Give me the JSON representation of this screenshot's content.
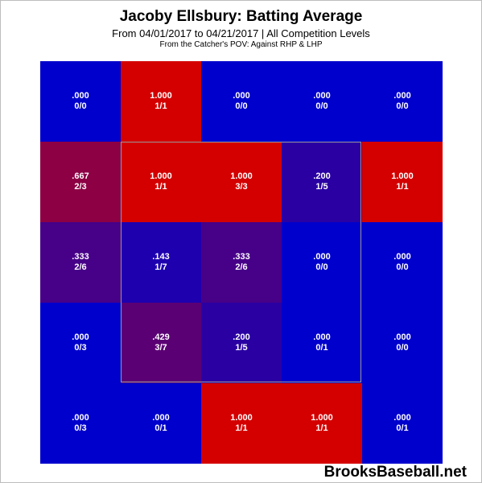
{
  "header": {
    "title": "Jacoby Ellsbury: Batting Average",
    "subtitle": "From 04/01/2017 to 04/21/2017 | All Competition Levels",
    "note": "From the Catcher's POV:  Against RHP & LHP"
  },
  "watermark": "BrooksBaseball.net",
  "colors": {
    "high": "#d40000",
    "low": "#0000cc",
    "cell_text": "#ffffff",
    "zone_border": "#9a9a9a"
  },
  "chart_data": {
    "type": "heatmap",
    "title": "Jacoby Ellsbury: Batting Average",
    "rows": 5,
    "cols": 5,
    "cells": [
      [
        {
          "avg": ".000",
          "ratio": "0/0",
          "value": 0.0
        },
        {
          "avg": "1.000",
          "ratio": "1/1",
          "value": 1.0
        },
        {
          "avg": ".000",
          "ratio": "0/0",
          "value": 0.0
        },
        {
          "avg": ".000",
          "ratio": "0/0",
          "value": 0.0
        },
        {
          "avg": ".000",
          "ratio": "0/0",
          "value": 0.0
        }
      ],
      [
        {
          "avg": ".667",
          "ratio": "2/3",
          "value": 0.667
        },
        {
          "avg": "1.000",
          "ratio": "1/1",
          "value": 1.0
        },
        {
          "avg": "1.000",
          "ratio": "3/3",
          "value": 1.0
        },
        {
          "avg": ".200",
          "ratio": "1/5",
          "value": 0.2
        },
        {
          "avg": "1.000",
          "ratio": "1/1",
          "value": 1.0
        }
      ],
      [
        {
          "avg": ".333",
          "ratio": "2/6",
          "value": 0.333
        },
        {
          "avg": ".143",
          "ratio": "1/7",
          "value": 0.143
        },
        {
          "avg": ".333",
          "ratio": "2/6",
          "value": 0.333
        },
        {
          "avg": ".000",
          "ratio": "0/0",
          "value": 0.0
        },
        {
          "avg": ".000",
          "ratio": "0/0",
          "value": 0.0
        }
      ],
      [
        {
          "avg": ".000",
          "ratio": "0/3",
          "value": 0.0
        },
        {
          "avg": ".429",
          "ratio": "3/7",
          "value": 0.429
        },
        {
          "avg": ".200",
          "ratio": "1/5",
          "value": 0.2
        },
        {
          "avg": ".000",
          "ratio": "0/1",
          "value": 0.0
        },
        {
          "avg": ".000",
          "ratio": "0/0",
          "value": 0.0
        }
      ],
      [
        {
          "avg": ".000",
          "ratio": "0/3",
          "value": 0.0
        },
        {
          "avg": ".000",
          "ratio": "0/1",
          "value": 0.0
        },
        {
          "avg": "1.000",
          "ratio": "1/1",
          "value": 1.0
        },
        {
          "avg": "1.000",
          "ratio": "1/1",
          "value": 1.0
        },
        {
          "avg": ".000",
          "ratio": "0/1",
          "value": 0.0
        }
      ]
    ],
    "strike_zone": {
      "row_start": 1,
      "row_end": 3,
      "col_start": 1,
      "col_end": 3
    }
  }
}
